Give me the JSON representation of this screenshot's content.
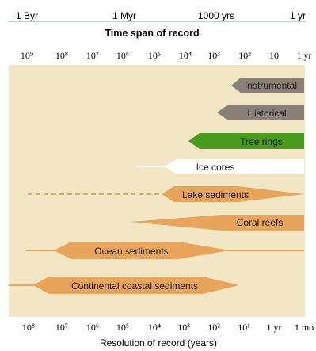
{
  "top_scale": {
    "labels": [
      "1 Byr",
      "1 Myr",
      "1000 yrs",
      "1 yr"
    ],
    "title": "Time span of record"
  },
  "top_axis_ticks": [
    "10⁹",
    "10⁸",
    "10⁷",
    "10⁶",
    "10⁵",
    "10⁴",
    "10³",
    "10²",
    "10",
    "1 yr"
  ],
  "bottom_axis_ticks": [
    "10⁸",
    "10⁷",
    "10⁶",
    "10⁵",
    "10⁴",
    "10³",
    "10²",
    "10¹",
    "1 yr",
    "1 mo"
  ],
  "bottom_axis_title": "Resolution of record (years)",
  "records": [
    {
      "label": "Instrumental",
      "color": "#8a8078"
    },
    {
      "label": "Historical",
      "color": "#8a8078"
    },
    {
      "label": "Tree rings",
      "color": "#4a9a1e"
    },
    {
      "label": "Ice cores",
      "color": "#ffffff"
    },
    {
      "label": "Lake sediments",
      "color": "#e8a45a"
    },
    {
      "label": "Coral reefs",
      "color": "#e8a45a"
    },
    {
      "label": "Ocean sediments",
      "color": "#e8a45a"
    },
    {
      "label": "Continental coastal sediments",
      "color": "#e8a45a"
    }
  ],
  "colors": {
    "plot_background": "#f3e6c5",
    "sediment": "#e8a45a",
    "documentary": "#8a8078",
    "biological": "#4a9a1e"
  }
}
